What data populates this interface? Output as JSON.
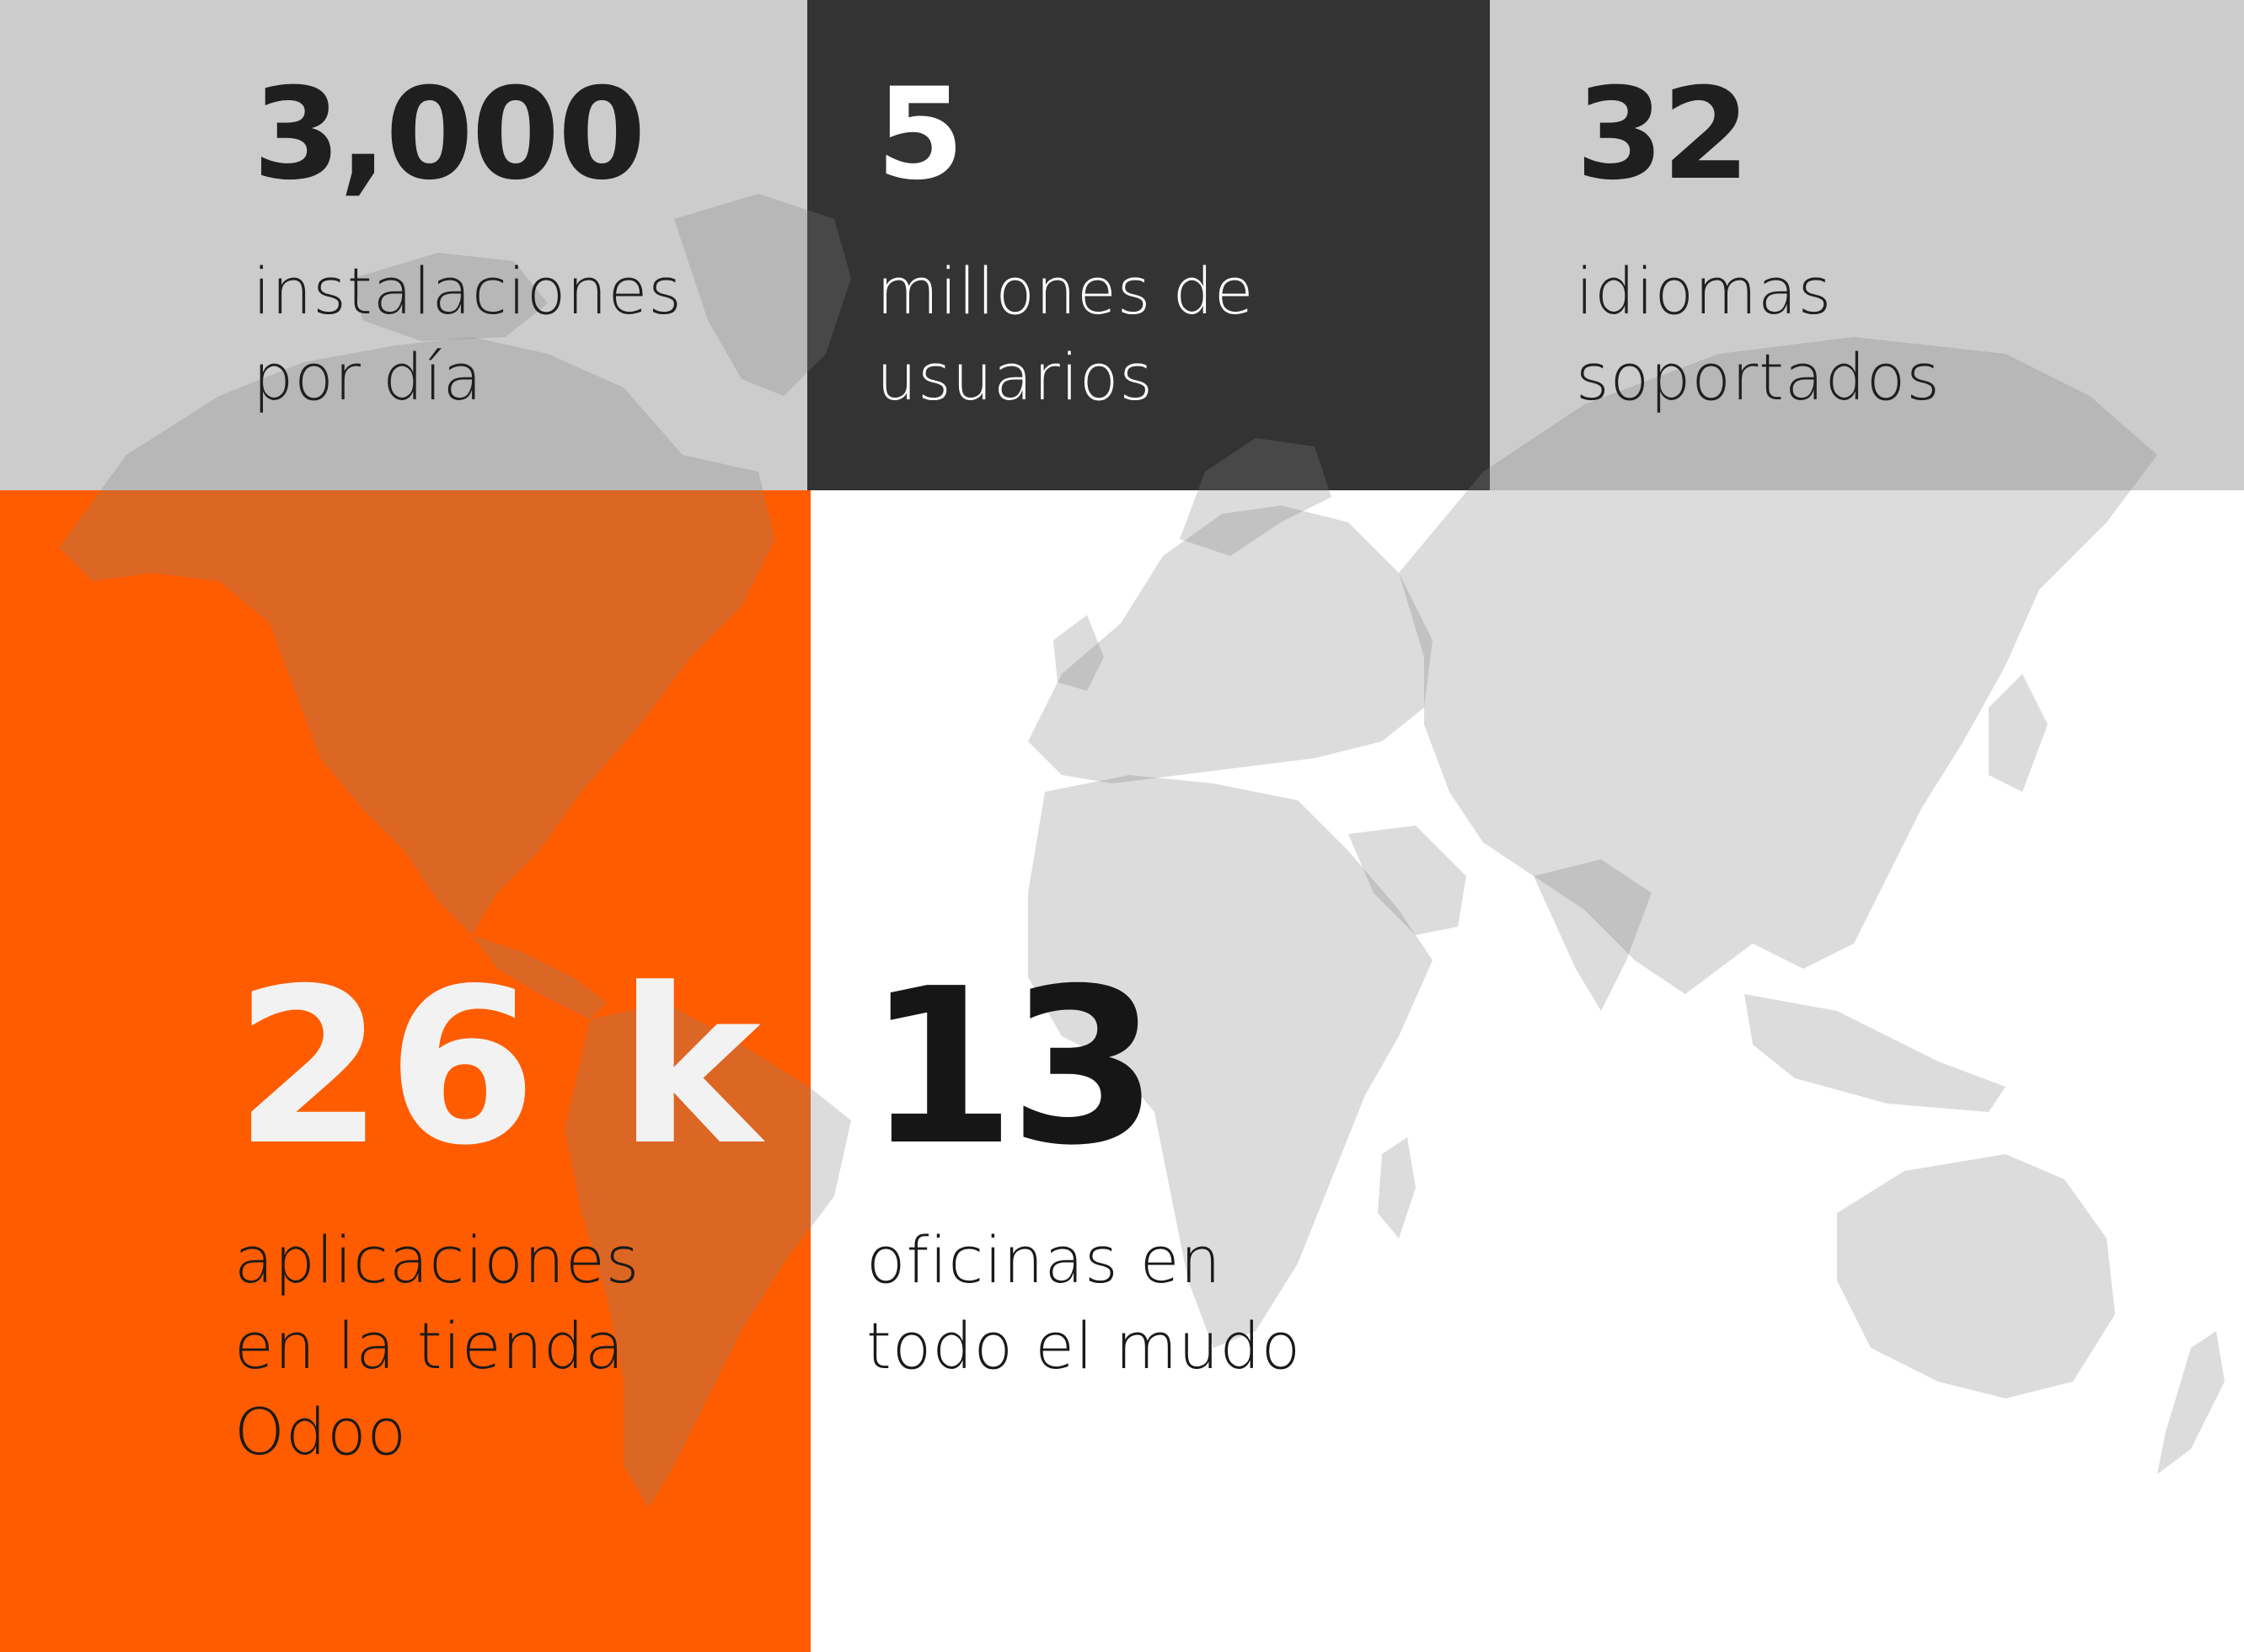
{
  "colors": {
    "panel_light_gray": "#cccccc",
    "panel_dark": "#333333",
    "panel_orange": "#ff5c00",
    "map_gray": "#c6c6c6"
  },
  "stats": {
    "installs": {
      "number": "3,000",
      "label_lines": [
        "instalaciones",
        "por día"
      ]
    },
    "users": {
      "number": "5",
      "label_lines": [
        "millones de",
        "usuarios"
      ]
    },
    "languages": {
      "number": "32",
      "label_lines": [
        "idiomas",
        "soportados"
      ]
    },
    "apps": {
      "number": "26 k",
      "label_lines": [
        "aplicaciones",
        "en la tienda",
        "Odoo"
      ]
    },
    "offices": {
      "number": "13",
      "label_lines": [
        "oficinas en",
        "todo el mudo"
      ]
    }
  }
}
